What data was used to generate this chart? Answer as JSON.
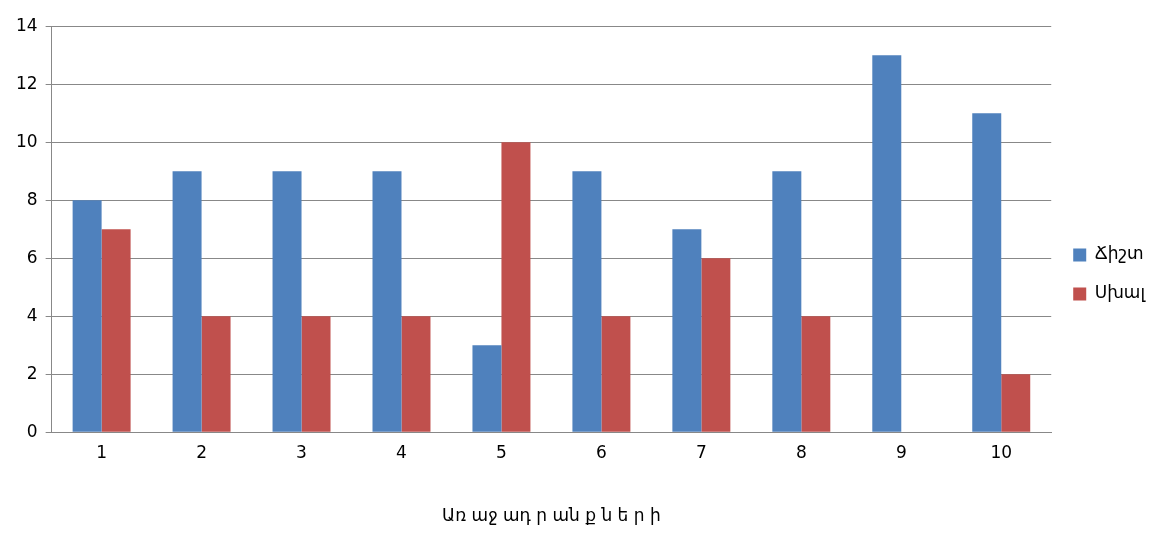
{
  "chart_data": {
    "type": "bar",
    "xlabel": "Առ աջ ադ ր ան ք ն ե ր ի",
    "categories": [
      "1",
      "2",
      "3",
      "4",
      "5",
      "6",
      "7",
      "8",
      "9",
      "10"
    ],
    "series": [
      {
        "name": "Ճիշտ",
        "color": "#4f81bd",
        "values": [
          8,
          9,
          9,
          9,
          3,
          9,
          7,
          9,
          13,
          11
        ]
      },
      {
        "name": "Սխալ",
        "color": "#c0504d",
        "values": [
          7,
          4,
          4,
          4,
          10,
          4,
          6,
          4,
          0,
          2
        ]
      }
    ],
    "ylim": [
      0,
      14
    ],
    "yticks": [
      0,
      2,
      4,
      6,
      8,
      10,
      12,
      14
    ],
    "grid": "y",
    "legend": "right"
  }
}
